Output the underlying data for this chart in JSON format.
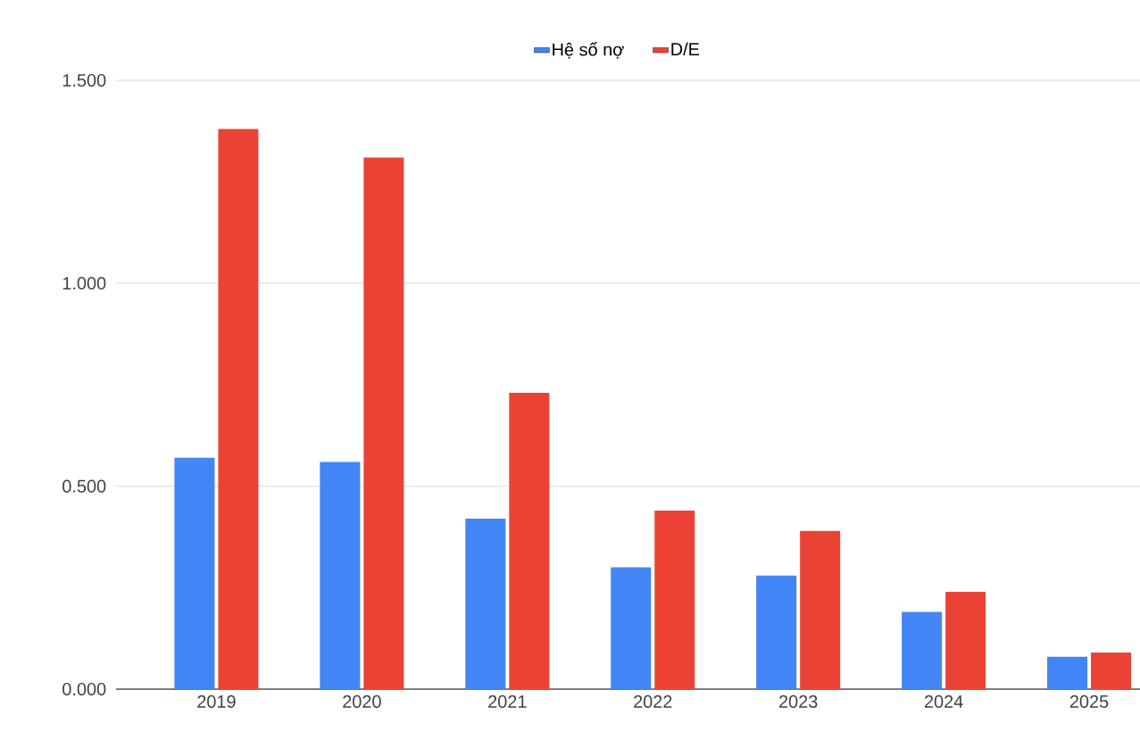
{
  "chart_data": {
    "type": "bar",
    "categories": [
      "2019",
      "2020",
      "2021",
      "2022",
      "2023",
      "2024",
      "2025"
    ],
    "series": [
      {
        "name": "Hệ số nợ",
        "color": "#4285f4",
        "values": [
          0.57,
          0.56,
          0.42,
          0.3,
          0.28,
          0.19,
          0.08
        ]
      },
      {
        "name": "D/E",
        "color": "#ea4335",
        "values": [
          1.38,
          1.31,
          0.73,
          0.44,
          0.39,
          0.24,
          0.09
        ]
      }
    ],
    "ylim": [
      0,
      1.5
    ],
    "yticks": [
      {
        "value": 0,
        "label": "0.000"
      },
      {
        "value": 0.5,
        "label": "0.500"
      },
      {
        "value": 1,
        "label": "1.000"
      },
      {
        "value": 1.5,
        "label": "1.500"
      }
    ],
    "grid": "y",
    "legend": "top"
  }
}
